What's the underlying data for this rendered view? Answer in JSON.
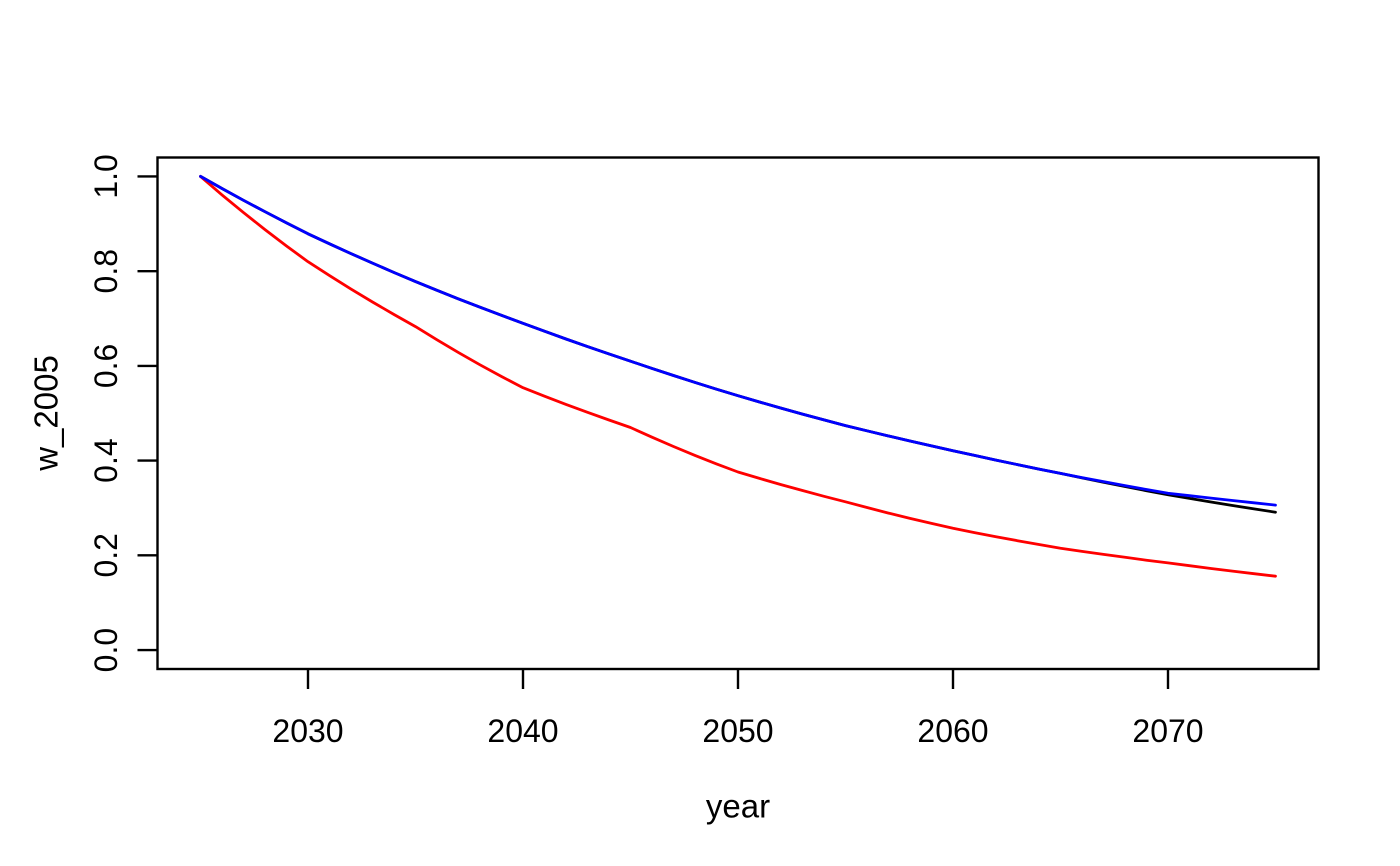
{
  "figure": {
    "background": "#ffffff"
  },
  "chart_data": {
    "type": "line",
    "title": "",
    "xlabel": "year",
    "ylabel": "w_2005",
    "x": [
      2025,
      2030,
      2035,
      2040,
      2045,
      2050,
      2055,
      2060,
      2065,
      2070,
      2075
    ],
    "series": [
      {
        "name": "black",
        "color": "#000000",
        "values": [
          1.0,
          0.879,
          0.778,
          0.69,
          0.61,
          0.537,
          0.474,
          0.421,
          0.373,
          0.328,
          0.291
        ]
      },
      {
        "name": "red",
        "color": "#ff0000",
        "values": [
          1.0,
          0.82,
          0.683,
          0.554,
          0.47,
          0.376,
          0.313,
          0.257,
          0.215,
          0.184,
          0.156
        ]
      },
      {
        "name": "blue",
        "color": "#0000ff",
        "values": [
          1.0,
          0.879,
          0.778,
          0.69,
          0.61,
          0.537,
          0.474,
          0.421,
          0.373,
          0.331,
          0.306
        ]
      }
    ],
    "x_ticks": {
      "values": [
        2030,
        2040,
        2050,
        2060,
        2070
      ],
      "labels": [
        "2030",
        "2040",
        "2050",
        "2060",
        "2070"
      ]
    },
    "y_ticks": {
      "values": [
        0.0,
        0.2,
        0.4,
        0.6,
        0.8,
        1.0
      ],
      "labels": [
        "0.0",
        "0.2",
        "0.4",
        "0.6",
        "0.8",
        "1.0"
      ]
    },
    "xlim": [
      2023,
      2077
    ],
    "ylim": [
      -0.04,
      1.04
    ],
    "x_data_range": [
      2025,
      2075
    ],
    "y_data_range": [
      0.0,
      1.0
    ],
    "grid": false,
    "legend": "none",
    "axis_color": "#000000"
  }
}
